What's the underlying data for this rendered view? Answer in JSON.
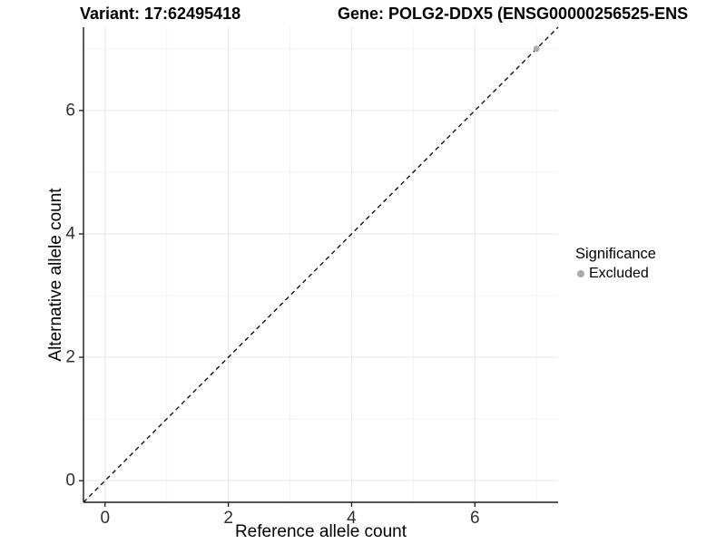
{
  "style": {
    "background": "#ffffff",
    "axis_line": "#1a1a1a",
    "tick_mark": "#1a1a1a",
    "tick_text": "#303030",
    "grid_major": "#e7e7e7",
    "grid_minor": "#f3f3f3",
    "reference_line": "#000000",
    "point_color": "#ababab"
  },
  "chart_data": {
    "type": "scatter",
    "title_left": "Variant: 17:62495418",
    "title_right": "Gene: POLG2-DDX5 (ENSG00000256525-ENS",
    "xlabel": "Reference allele count",
    "ylabel": "Alternative allele count",
    "xlim": [
      -0.35,
      7.35
    ],
    "ylim": [
      -0.35,
      7.35
    ],
    "xticks": [
      0,
      2,
      4,
      6
    ],
    "yticks": [
      0,
      2,
      4,
      6
    ],
    "minor_xticks": [
      1,
      3,
      5,
      7
    ],
    "minor_yticks": [
      1,
      3,
      5,
      7
    ],
    "grid": "major and minor, light gray on white",
    "reference_line": {
      "type": "identity y=x",
      "style": "dashed",
      "color": "#000000"
    },
    "series": [
      {
        "name": "Excluded",
        "color": "#ababab",
        "points": [
          {
            "x": 7,
            "y": 7
          }
        ]
      }
    ],
    "legend": {
      "position": "right",
      "title": "Significance",
      "items": [
        {
          "label": "Excluded",
          "color": "#ababab",
          "marker": "circle"
        }
      ]
    }
  }
}
